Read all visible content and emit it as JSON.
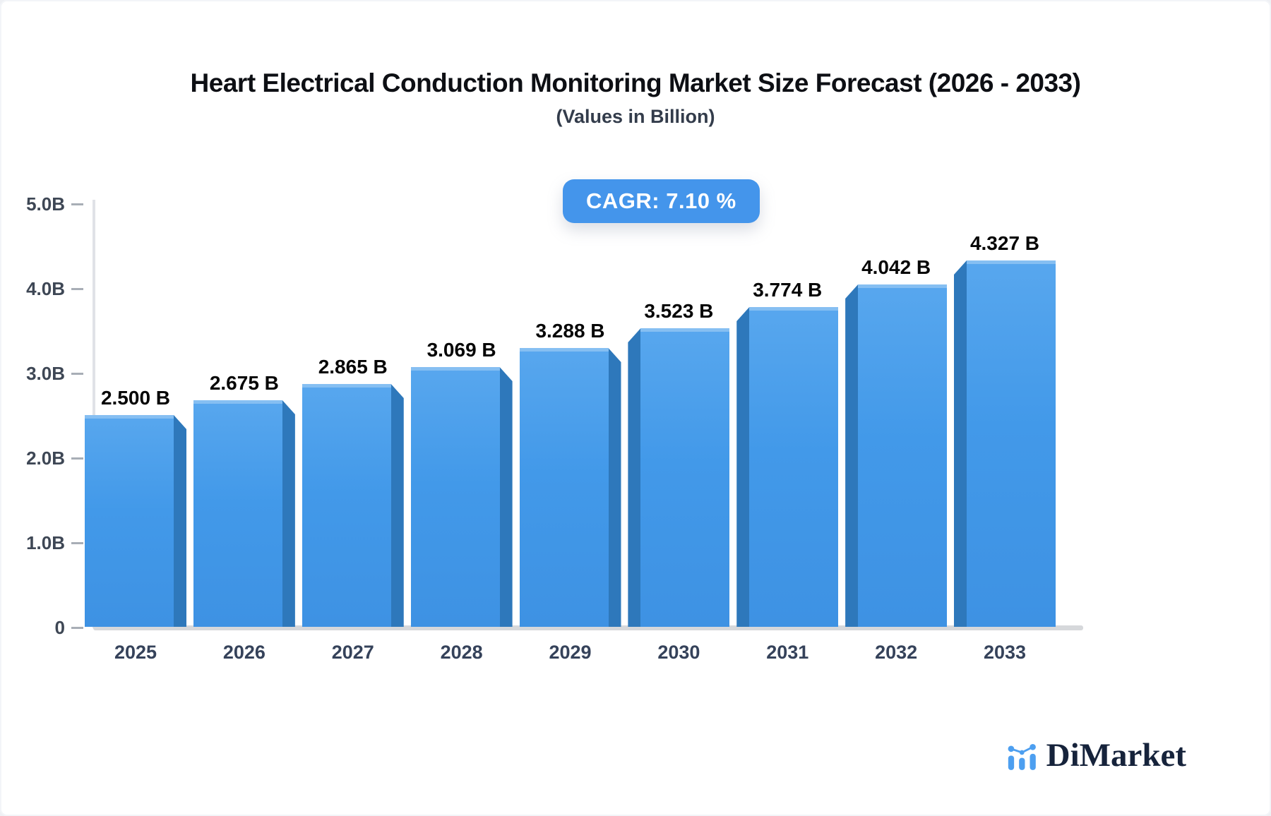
{
  "page": {
    "title": "Heart Electrical Conduction Monitoring Market Size Forecast (2026 - 2033)",
    "subtitle": "(Values in Billion)"
  },
  "badge": {
    "label": "CAGR: 7.10 %"
  },
  "chart_data": {
    "type": "bar",
    "title": "Heart Electrical Conduction Monitoring Market Size Forecast (2026 - 2033)",
    "subtitle": "(Values in Billion)",
    "cagr": "7.10 %",
    "categories": [
      "2025",
      "2026",
      "2027",
      "2028",
      "2029",
      "2030",
      "2031",
      "2032",
      "2033"
    ],
    "values": [
      2.5,
      2.675,
      2.865,
      3.069,
      3.288,
      3.523,
      3.774,
      4.042,
      4.327
    ],
    "value_labels": [
      "2.500 B",
      "2.675 B",
      "2.865 B",
      "3.069 B",
      "3.288 B",
      "3.523 B",
      "3.774 B",
      "4.042 B",
      "4.327 B"
    ],
    "unit": "Billion",
    "xlabel": "",
    "ylabel": "",
    "ylim": [
      0,
      5
    ],
    "yticks": [
      {
        "value": 5,
        "label": "5.0B"
      },
      {
        "value": 4,
        "label": "4.0B"
      },
      {
        "value": 3,
        "label": "3.0B"
      },
      {
        "value": 2,
        "label": "2.0B"
      },
      {
        "value": 1,
        "label": "1.0B"
      },
      {
        "value": 0,
        "label": "0"
      }
    ],
    "grid": false,
    "legend": "none",
    "bar_style": "3d-bevel-toward-center"
  },
  "colors": {
    "bar_face": "#4299e9",
    "bar_face_top": "#58a7ee",
    "bar_side": "#2e78bb",
    "badge_bg": "#4495eb",
    "badge_text": "#ffffff",
    "axis_line": "#e0e2e7",
    "baseline": "#d6d8db",
    "tick": "#a8aeb6",
    "axis_label": "#3e4755",
    "year_label": "#35425a",
    "title_text": "#0d0f14",
    "logo_blue": "#4d9ff0",
    "logo_text": "#16233b"
  },
  "logo": {
    "text": "DiMarket",
    "icon": "bar-chart-logo-icon"
  }
}
